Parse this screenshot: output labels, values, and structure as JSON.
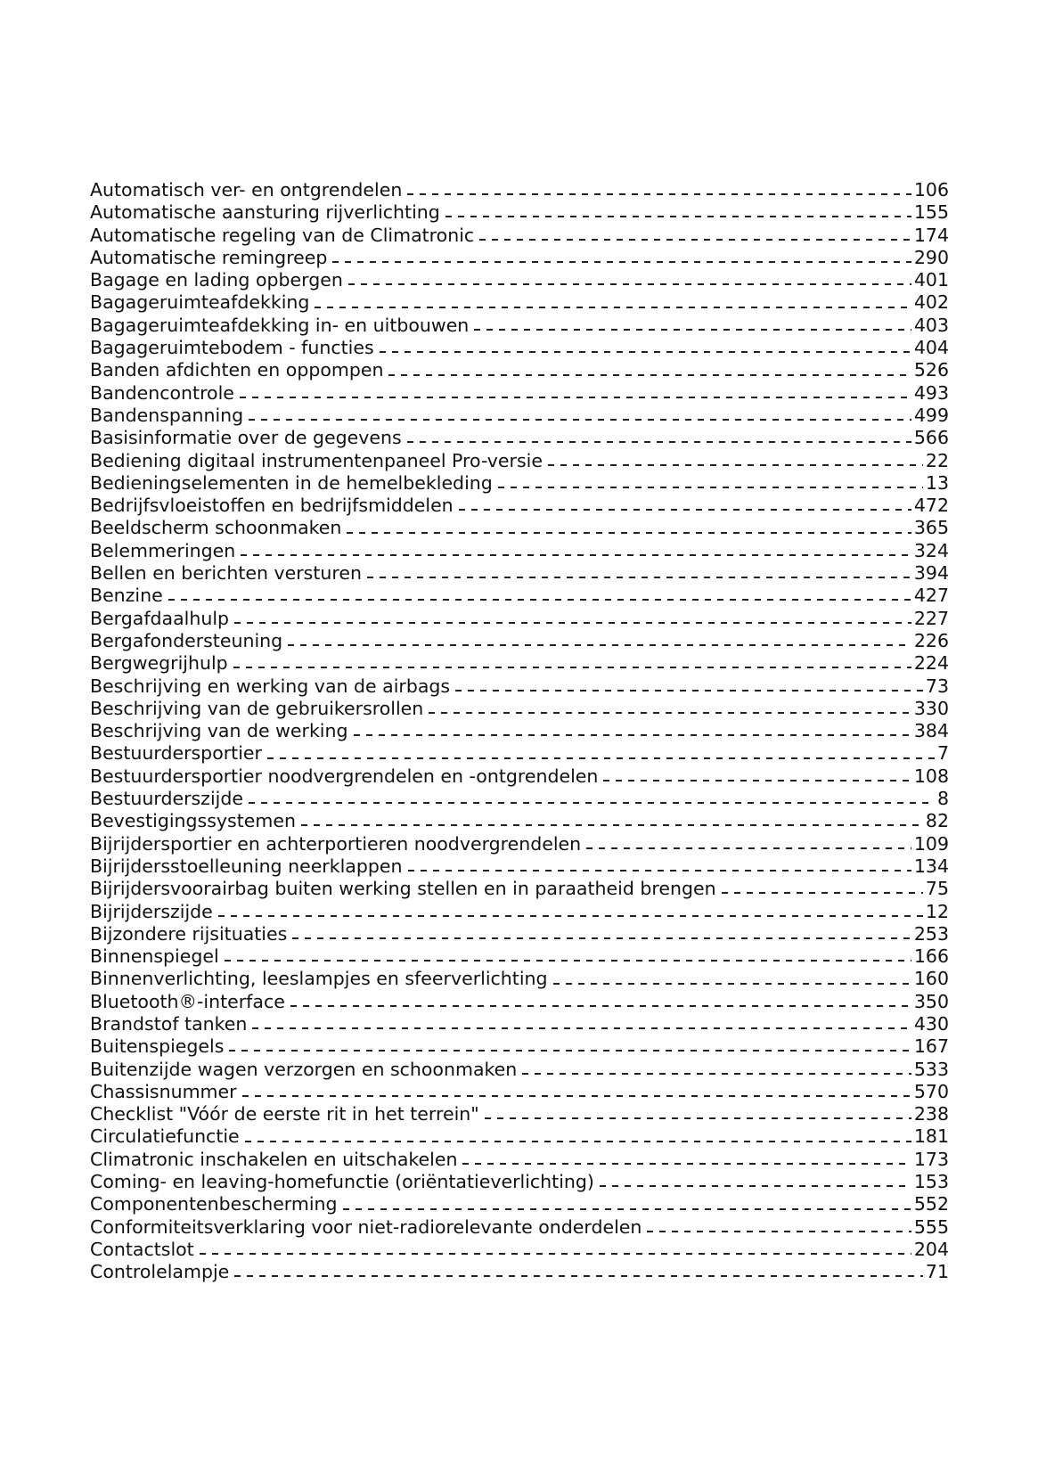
{
  "index": {
    "entries": [
      {
        "term": "Automatisch ver- en ontgrendelen",
        "page": "106"
      },
      {
        "term": "Automatische aansturing rijverlichting",
        "page": "155"
      },
      {
        "term": "Automatische regeling van de Climatronic",
        "page": "174"
      },
      {
        "term": "Automatische remingreep",
        "page": "290"
      },
      {
        "term": "Bagage en lading opbergen",
        "page": "401"
      },
      {
        "term": "Bagageruimteafdekking",
        "page": "402"
      },
      {
        "term": "Bagageruimteafdekking in- en uitbouwen",
        "page": "403"
      },
      {
        "term": "Bagageruimtebodem - functies",
        "page": "404"
      },
      {
        "term": "Banden afdichten en oppompen",
        "page": "526"
      },
      {
        "term": "Bandencontrole",
        "page": "493"
      },
      {
        "term": "Bandenspanning",
        "page": "499"
      },
      {
        "term": "Basisinformatie over de gegevens",
        "page": "566"
      },
      {
        "term": "Bediening digitaal instrumentenpaneel Pro-versie",
        "page": "22"
      },
      {
        "term": "Bedieningselementen in de hemelbekleding",
        "page": "13"
      },
      {
        "term": "Bedrijfsvloeistoffen en bedrijfsmiddelen",
        "page": "472"
      },
      {
        "term": "Beeldscherm schoonmaken",
        "page": "365"
      },
      {
        "term": "Belemmeringen",
        "page": "324"
      },
      {
        "term": "Bellen en berichten versturen",
        "page": "394"
      },
      {
        "term": "Benzine",
        "page": "427"
      },
      {
        "term": "Bergafdaalhulp",
        "page": "227"
      },
      {
        "term": "Bergafondersteuning",
        "page": "226"
      },
      {
        "term": "Bergwegrijhulp",
        "page": "224"
      },
      {
        "term": "Beschrijving en werking van de airbags",
        "page": "73"
      },
      {
        "term": "Beschrijving van de gebruikersrollen",
        "page": "330"
      },
      {
        "term": "Beschrijving van de werking",
        "page": "384"
      },
      {
        "term": "Bestuurdersportier",
        "page": "7"
      },
      {
        "term": "Bestuurdersportier noodvergrendelen en -ontgrendelen",
        "page": "108"
      },
      {
        "term": "Bestuurderszijde",
        "page": "8"
      },
      {
        "term": "Bevestigingssystemen",
        "page": "82"
      },
      {
        "term": "Bijrijdersportier en achterportieren noodvergrendelen",
        "page": "109"
      },
      {
        "term": "Bijrijdersstoelleuning neerklappen",
        "page": "134"
      },
      {
        "term": "Bijrijdersvoorairbag buiten werking stellen en in paraatheid brengen",
        "page": "75"
      },
      {
        "term": "Bijrijderszijde",
        "page": "12"
      },
      {
        "term": "Bijzondere rijsituaties",
        "page": "253"
      },
      {
        "term": "Binnenspiegel",
        "page": "166"
      },
      {
        "term": "Binnenverlichting, leeslampjes en sfeerverlichting",
        "page": "160"
      },
      {
        "term": "Bluetooth®-interface",
        "page": "350"
      },
      {
        "term": "Brandstof tanken",
        "page": "430"
      },
      {
        "term": "Buitenspiegels",
        "page": "167"
      },
      {
        "term": "Buitenzijde wagen verzorgen en schoonmaken",
        "page": "533"
      },
      {
        "term": "Chassisnummer",
        "page": "570"
      },
      {
        "term": "Checklist \"Vóór de eerste rit in het terrein\"",
        "page": "238"
      },
      {
        "term": "Circulatiefunctie",
        "page": "181"
      },
      {
        "term": "Climatronic inschakelen en uitschakelen",
        "page": "173"
      },
      {
        "term": "Coming- en leaving-homefunctie (oriëntatieverlichting)",
        "page": "153"
      },
      {
        "term": "Componentenbescherming",
        "page": "552"
      },
      {
        "term": "Conformiteitsverklaring voor niet-radiorelevante onderdelen",
        "page": "555"
      },
      {
        "term": "Contactslot",
        "page": "204"
      },
      {
        "term": "Controlelampje",
        "page": "71"
      }
    ]
  }
}
